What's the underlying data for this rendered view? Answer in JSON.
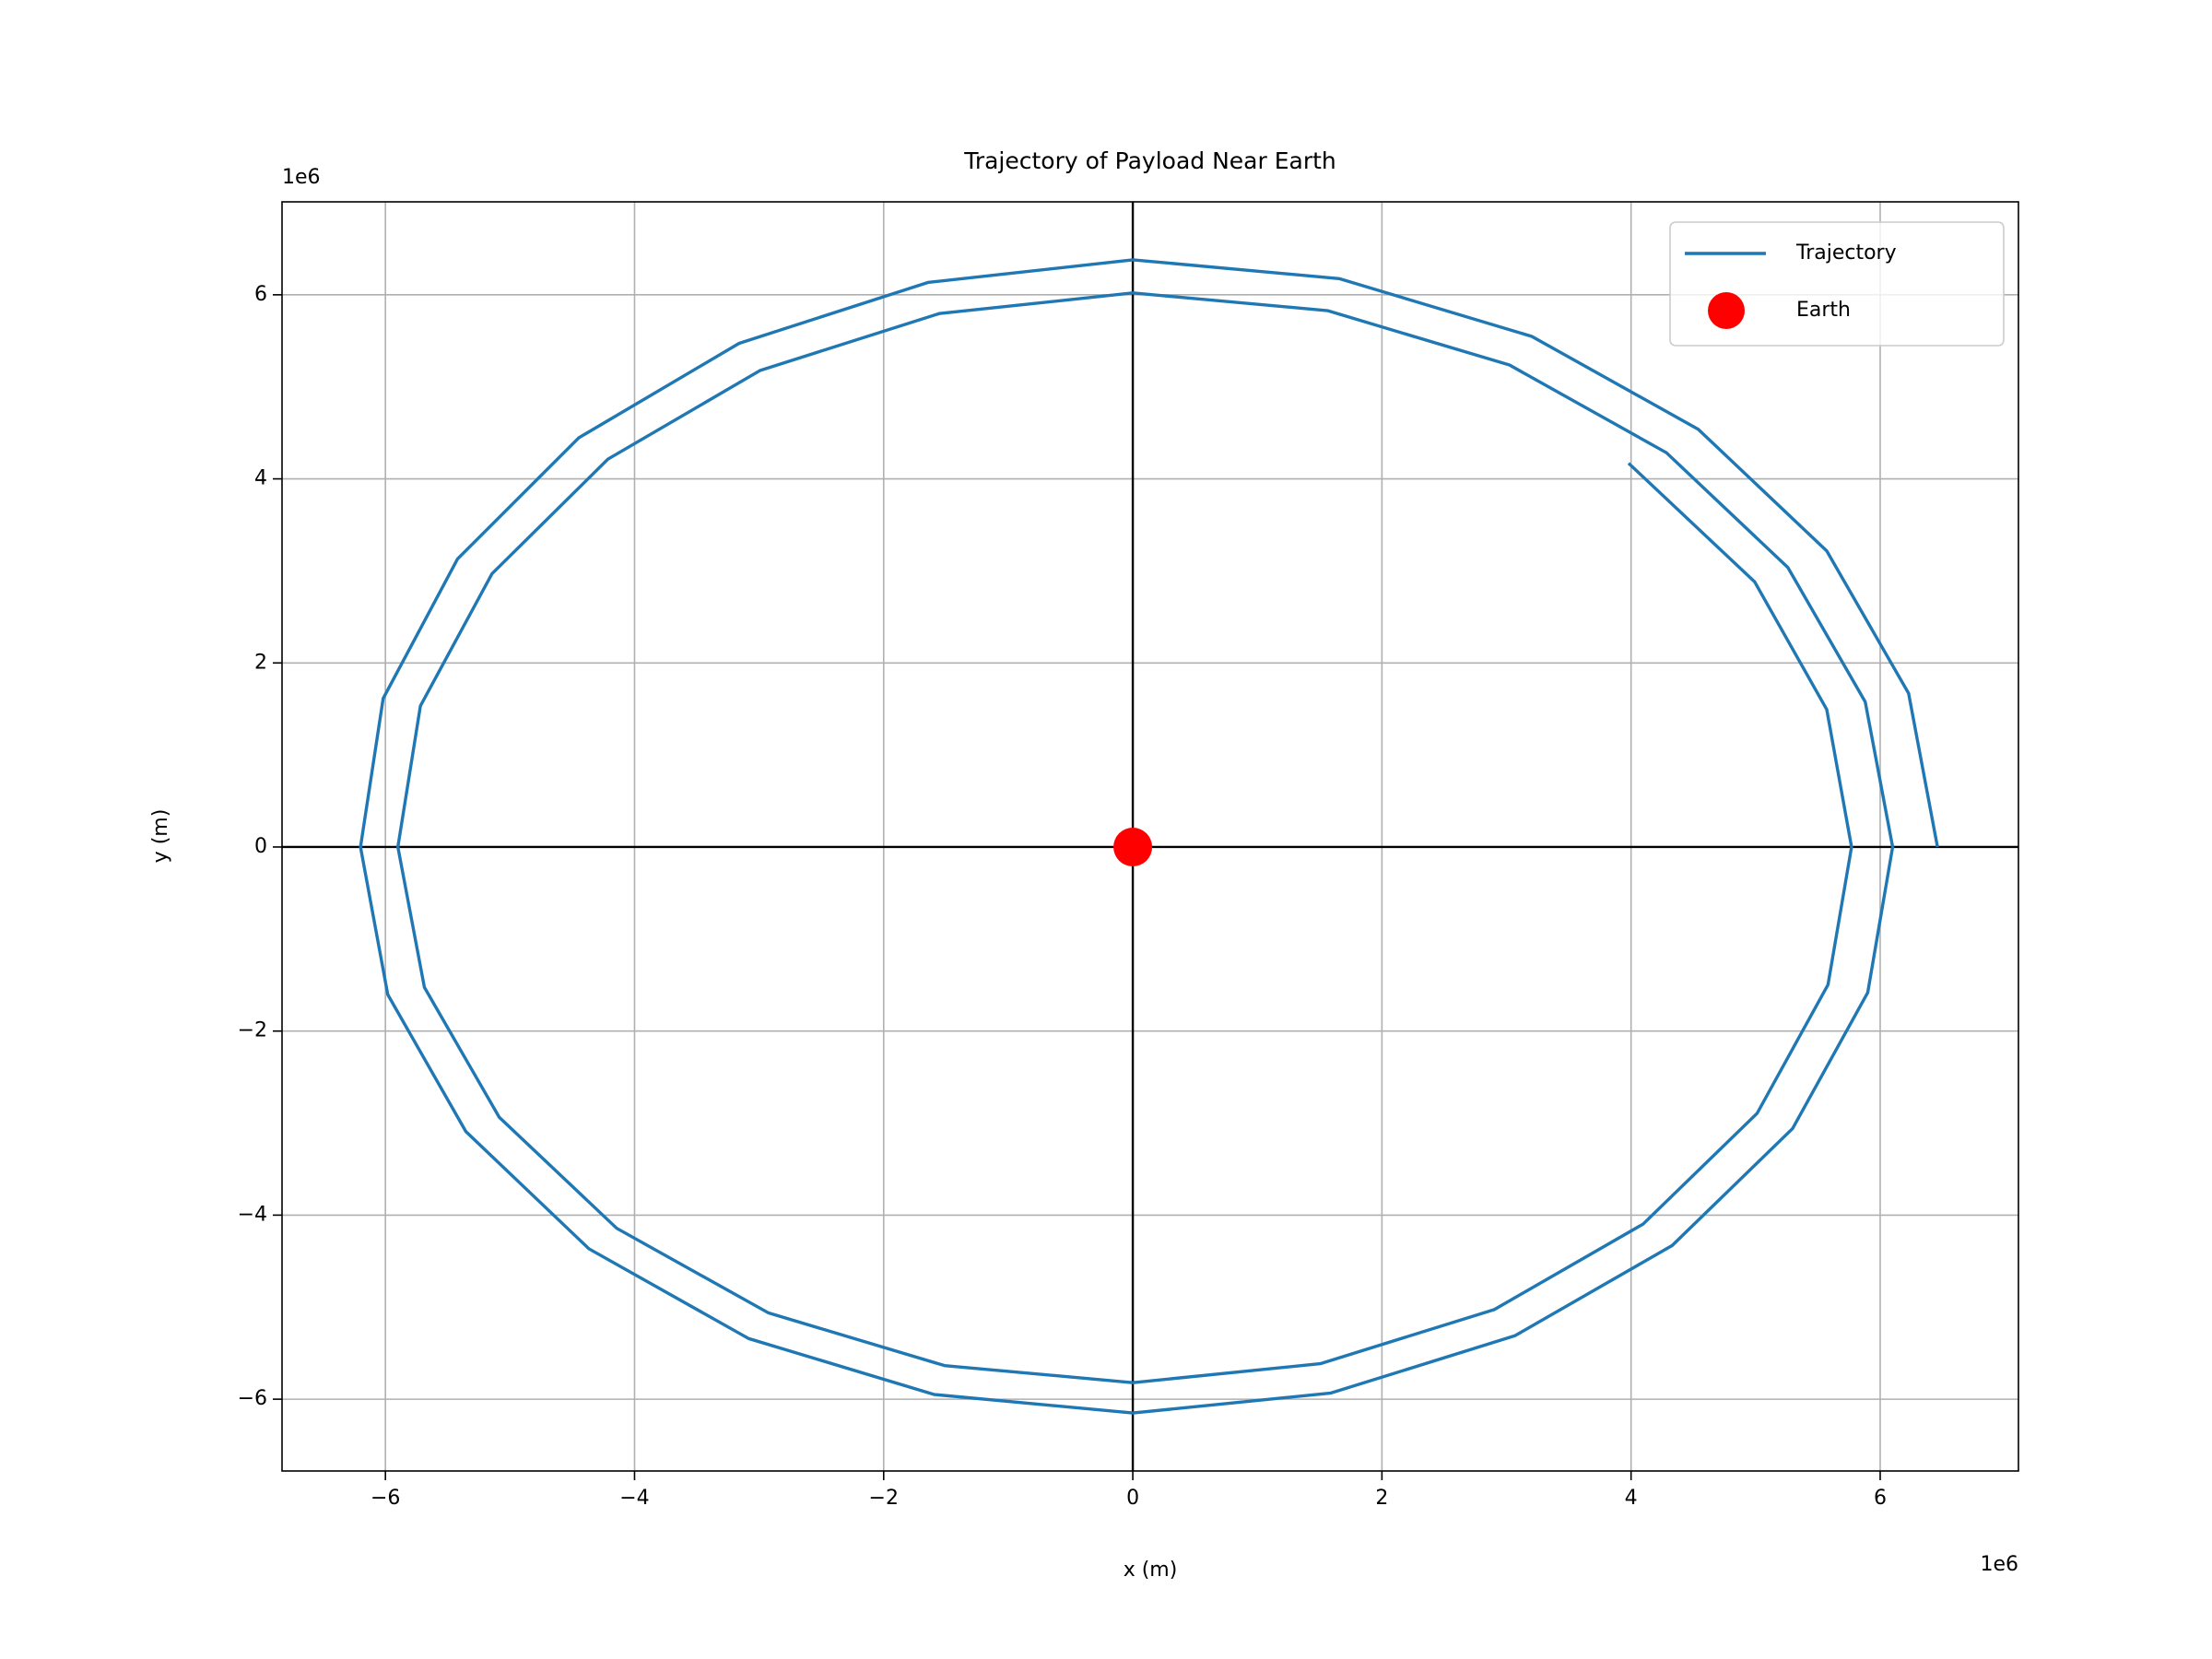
{
  "chart_data": {
    "type": "line",
    "title": "Trajectory of Payload Near Earth",
    "x_label": "x (m)",
    "y_label": "y (m)",
    "x_offset_label": "1e6",
    "y_offset_label": "1e6",
    "xlim": [
      -6830000,
      7110000
    ],
    "ylim": [
      -6780000,
      7010000
    ],
    "xticks": [
      {
        "value": -6000000,
        "label": "−6"
      },
      {
        "value": -4000000,
        "label": "−4"
      },
      {
        "value": -2000000,
        "label": "−2"
      },
      0,
      {
        "value": 2000000,
        "label": "2"
      },
      {
        "value": 4000000,
        "label": "4"
      },
      {
        "value": 6000000,
        "label": "6"
      }
    ],
    "yticks": [
      {
        "value": -6000000,
        "label": "−6"
      },
      {
        "value": -4000000,
        "label": "−4"
      },
      {
        "value": -2000000,
        "label": "−2"
      },
      0,
      {
        "value": 2000000,
        "label": "2"
      },
      {
        "value": 4000000,
        "label": "4"
      },
      {
        "value": 6000000,
        "label": "6"
      }
    ],
    "grid": true,
    "axhline": 0,
    "axvline": 0,
    "legend": "upper right",
    "series": [
      {
        "name": "Trajectory",
        "color": "#1f77b4",
        "x": [
          6460000,
          6228000,
          5571000,
          4539000,
          3203000,
          1656000,
          0,
          -1645000,
          -3160000,
          -4447000,
          -5421000,
          -6018000,
          -6200000,
          -5981000,
          -5354000,
          -4366000,
          -3084000,
          -1595000,
          0,
          1591000,
          3067000,
          4330000,
          5297000,
          5900000,
          6100000,
          5880000,
          5259000,
          4284000,
          3024000,
          1563000,
          0,
          -1554000,
          -2990000,
          -4214000,
          -5144000,
          -5719000,
          -5900000,
          -5687000,
          -5086000,
          -4143000,
          -2924000,
          -1511000,
          0,
          1505000,
          2902000,
          4097000,
          5012000,
          5581000,
          5770000,
          5571000,
          4992000,
          3980000
        ],
        "y": [
          0,
          1670000,
          3217000,
          4539000,
          5548000,
          6176000,
          6380000,
          6134000,
          5473000,
          4447000,
          3130000,
          1614000,
          0,
          -1604000,
          -3092000,
          -4366000,
          -5341000,
          -5949000,
          -6150000,
          -5933000,
          -5311000,
          -4330000,
          -3059000,
          -1582000,
          0,
          1577000,
          3037000,
          4284000,
          5237000,
          5828000,
          6020000,
          5796000,
          5179000,
          4214000,
          2970000,
          1533000,
          0,
          -1525000,
          -2937000,
          -4143000,
          -5063000,
          -5635000,
          -5820000,
          -5614000,
          -5026000,
          -4097000,
          -2894000,
          -1497000,
          0,
          1494000,
          2882000,
          4170000
        ]
      },
      {
        "name": "Earth",
        "color": "red",
        "marker": "o",
        "x": [
          0
        ],
        "y": [
          0
        ]
      }
    ]
  }
}
